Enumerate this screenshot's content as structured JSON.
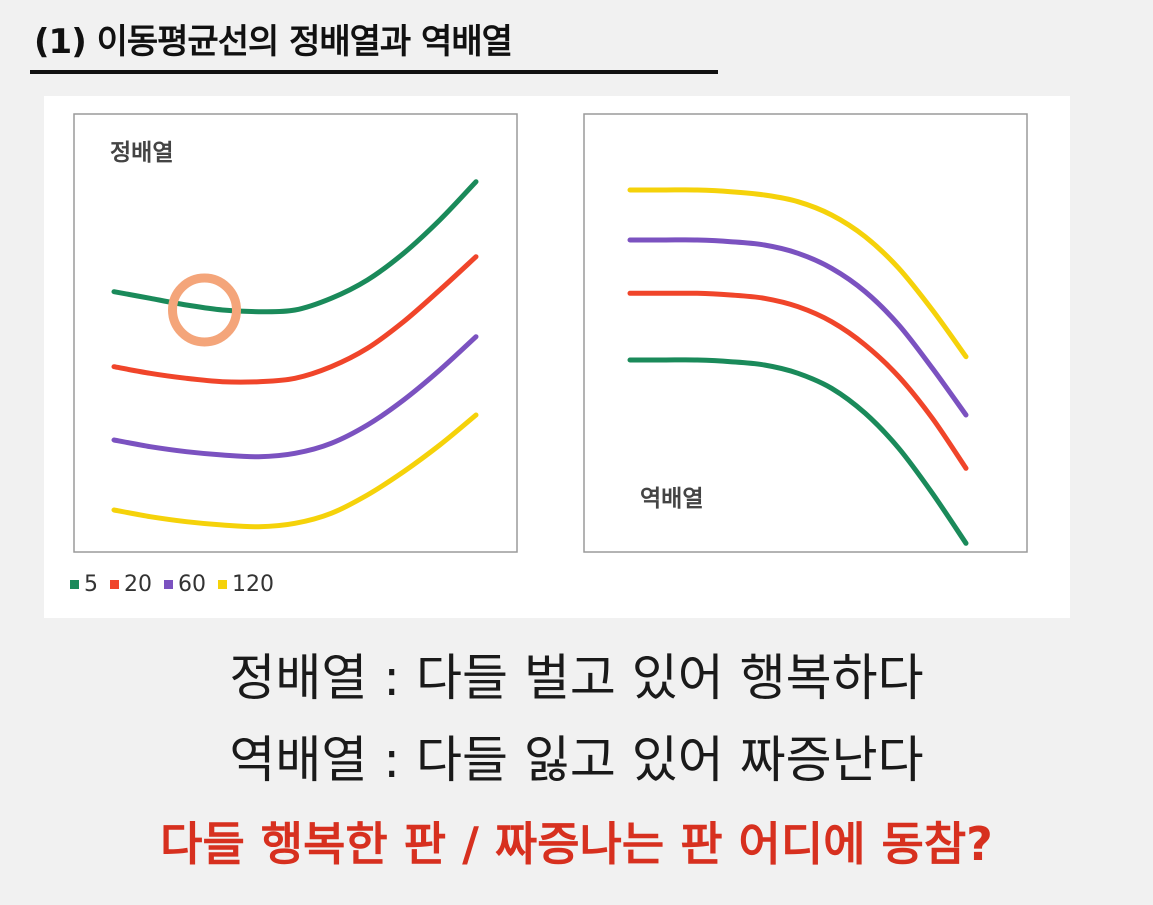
{
  "header": {
    "title": "(1) 이동평균선의 정배열과 역배열"
  },
  "legend": [
    {
      "label": "5",
      "color": "#1a8a5a"
    },
    {
      "label": "20",
      "color": "#f0452a"
    },
    {
      "label": "60",
      "color": "#7b52c0"
    },
    {
      "label": "120",
      "color": "#f5d20a"
    }
  ],
  "highlight": {
    "color": "#f4a57a",
    "x": 25,
    "y": 128
  },
  "chart_data": [
    {
      "type": "line",
      "title": "정배열",
      "xlabel": "",
      "ylabel": "",
      "x": [
        0,
        10,
        20,
        30,
        40,
        50,
        60,
        70,
        80,
        90,
        100
      ],
      "ylim": [
        0,
        230
      ],
      "grid": false,
      "series": [
        {
          "name": "5",
          "color": "#1a8a5a",
          "values": [
            139,
            135,
            131,
            128,
            127,
            128,
            135,
            146,
            162,
            182,
            205
          ]
        },
        {
          "name": "20",
          "color": "#f0452a",
          "values": [
            94,
            90,
            87,
            85,
            85,
            87,
            94,
            105,
            121,
            140,
            160
          ]
        },
        {
          "name": "60",
          "color": "#7b52c0",
          "values": [
            50,
            46,
            43,
            41,
            40,
            42,
            48,
            59,
            74,
            92,
            112
          ]
        },
        {
          "name": "120",
          "color": "#f5d20a",
          "values": [
            8,
            4,
            1,
            -1,
            -2,
            0,
            6,
            17,
            31,
            47,
            65
          ]
        }
      ]
    },
    {
      "type": "line",
      "title": "역배열",
      "xlabel": "",
      "ylabel": "",
      "x": [
        0,
        10,
        20,
        30,
        40,
        50,
        60,
        70,
        80,
        90,
        100
      ],
      "ylim": [
        0,
        230
      ],
      "grid": false,
      "series": [
        {
          "name": "120",
          "color": "#f5d20a",
          "values": [
            200,
            200,
            200,
            199,
            197,
            193,
            185,
            172,
            153,
            128,
            100
          ]
        },
        {
          "name": "60",
          "color": "#7b52c0",
          "values": [
            170,
            170,
            170,
            169,
            167,
            162,
            153,
            139,
            119,
            93,
            65
          ]
        },
        {
          "name": "20",
          "color": "#f0452a",
          "values": [
            138,
            138,
            138,
            137,
            135,
            130,
            121,
            107,
            88,
            63,
            33
          ]
        },
        {
          "name": "5",
          "color": "#1a8a5a",
          "values": [
            98,
            98,
            98,
            97,
            95,
            90,
            81,
            66,
            45,
            18,
            -12
          ]
        }
      ]
    }
  ],
  "captions": {
    "line1": "정배열 : 다들 벌고 있어 행복하다",
    "line2": "역배열 : 다들 잃고 있어 짜증난다",
    "line3": "다들 행복한 판 / 짜증나는 판 어디에 동참?"
  }
}
